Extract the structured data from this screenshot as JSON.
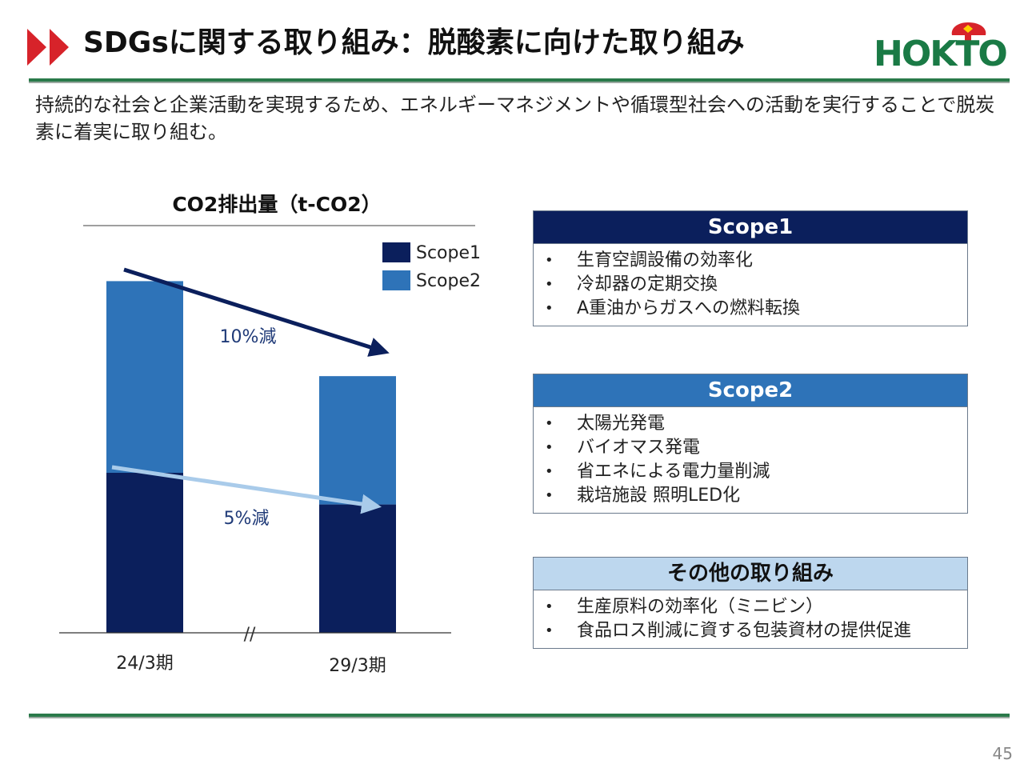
{
  "header": {
    "title": "SDGsに関する取り組み：脱酸素に向けた取り組み",
    "logo_text": "HOKTO"
  },
  "intro_text": "持続的な社会と企業活動を実現するため、エネルギーマネジメントや循環型社会への活動を実行することで脱炭素に着実に取り組む。",
  "chart_data": {
    "type": "bar",
    "stacked": true,
    "title": "CO2排出量（t-CO2）",
    "categories": [
      "24/3期",
      "29/3期"
    ],
    "series": [
      {
        "name": "Scope1",
        "values": [
          48,
          38.5
        ],
        "color": "#0b1f5c"
      },
      {
        "name": "Scope2",
        "values": [
          57.5,
          38.5
        ],
        "color": "#2e73b8"
      }
    ],
    "ylim": [
      0,
      120
    ],
    "axis_break_label": "//",
    "annotations": [
      {
        "text": "10%減",
        "applies_to": "Scope1+Scope2",
        "color": "#0b1f5c"
      },
      {
        "text": "5%減",
        "applies_to": "Scope1",
        "color": "#a9cbea"
      }
    ],
    "legend_position": "top-right",
    "grid": false
  },
  "boxes": [
    {
      "title": "Scope1",
      "header_color": "#0b1f5c",
      "header_text_color": "#ffffff",
      "items": [
        "生育空調設備の効率化",
        "冷却器の定期交換",
        "A重油からガスへの燃料転換"
      ]
    },
    {
      "title": "Scope2",
      "header_color": "#2e73b8",
      "header_text_color": "#ffffff",
      "items": [
        "太陽光発電",
        "バイオマス発電",
        "省エネによる電力量削減",
        "栽培施設 照明LED化"
      ]
    },
    {
      "title": "その他の取り組み",
      "header_color": "#bdd7ee",
      "header_text_color": "#111111",
      "items": [
        "生産原料の効率化（ミニビン）",
        "食品ロス削減に資する包装資材の提供促進"
      ]
    }
  ],
  "page_number": "45"
}
